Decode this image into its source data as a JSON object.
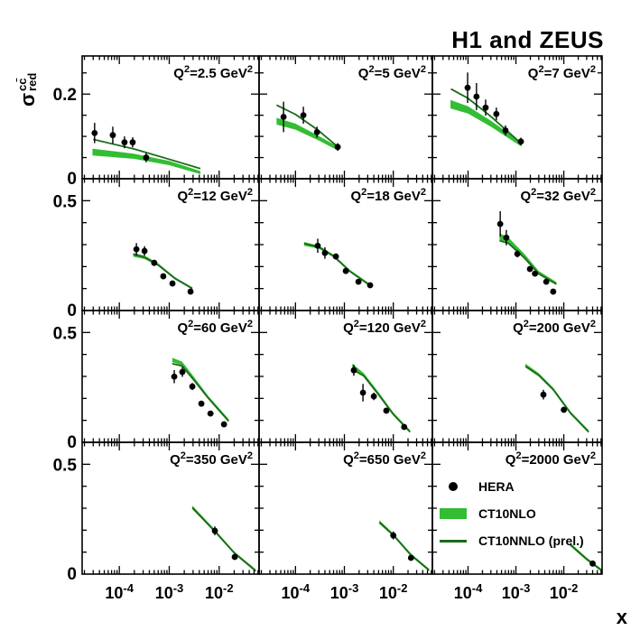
{
  "chart_data": {
    "type": "scatter",
    "title": "H1 and ZEUS",
    "xlabel": "x",
    "ylabel": {
      "base": "σ",
      "sup": "cc̄",
      "sub": "red"
    },
    "x_scale": "log",
    "x_range": [
      1.8e-05,
      0.063
    ],
    "x_major_ticks": [
      {
        "v": 0.0001,
        "base": "10",
        "exp": "-4",
        "label": "10⁻⁴"
      },
      {
        "v": 0.001,
        "base": "10",
        "exp": "-3",
        "label": "10⁻³"
      },
      {
        "v": 0.01,
        "base": "10",
        "exp": "-2",
        "label": "10⁻²"
      }
    ],
    "grid": {
      "nrows": 4,
      "ncols": 3
    },
    "rows": [
      {
        "ymax": 0.29,
        "minor_step": 0.05,
        "tick_labels": [
          {
            "v": 0.2,
            "t": "0.2"
          },
          {
            "v": 0,
            "t": "0"
          }
        ]
      },
      {
        "ymax": 0.6,
        "minor_step": 0.1,
        "tick_labels": [
          {
            "v": 0.5,
            "t": "0.5"
          },
          {
            "v": 0,
            "t": "0"
          }
        ]
      },
      {
        "ymax": 0.6,
        "minor_step": 0.1,
        "tick_labels": [
          {
            "v": 0.5,
            "t": "0.5"
          },
          {
            "v": 0,
            "t": "0"
          }
        ]
      },
      {
        "ymax": 0.6,
        "minor_step": 0.1,
        "tick_labels": [
          {
            "v": 0.5,
            "t": "0.5"
          },
          {
            "v": 0,
            "t": "0"
          }
        ]
      }
    ],
    "legend": [
      {
        "type": "marker",
        "label": "HERA"
      },
      {
        "type": "band",
        "label": "CT10NLO"
      },
      {
        "type": "line",
        "label": "CT10NNLO (prel.)"
      }
    ],
    "colors": {
      "data": "#000000",
      "band": "#33bd33",
      "line": "#1a6b1a"
    },
    "panels": [
      {
        "q2": "2.5",
        "label": "Q²=2.5 GeV²",
        "points": {
          "x": [
            3.2e-05,
            7.4e-05,
            0.000127,
            0.000185,
            0.000345
          ],
          "y": [
            0.108,
            0.103,
            0.086,
            0.086,
            0.05
          ],
          "ey": [
            0.024,
            0.02,
            0.014,
            0.012,
            0.011
          ]
        },
        "band": [
          [
            2.9e-05,
            0.055,
            0.071
          ],
          [
            0.0002,
            0.047,
            0.059
          ],
          [
            0.001,
            0.032,
            0.042
          ],
          [
            0.0042,
            0.011,
            0.018
          ]
        ],
        "line": [
          [
            3e-05,
            0.093
          ],
          [
            0.0002,
            0.07
          ],
          [
            0.001,
            0.046
          ],
          [
            0.0042,
            0.024
          ]
        ]
      },
      {
        "q2": "5",
        "label": "Q²=5 GeV²",
        "points": {
          "x": [
            5.7e-05,
            0.000145,
            0.000275,
            0.00073
          ],
          "y": [
            0.146,
            0.15,
            0.11,
            0.075
          ],
          "ey": [
            0.036,
            0.02,
            0.013,
            0.009
          ]
        },
        "band": [
          [
            4.1e-05,
            0.128,
            0.144
          ],
          [
            0.0001,
            0.116,
            0.13
          ],
          [
            0.00028,
            0.092,
            0.103
          ],
          [
            0.00076,
            0.066,
            0.075
          ]
        ],
        "line": [
          [
            4.1e-05,
            0.174
          ],
          [
            0.0001,
            0.152
          ],
          [
            0.00028,
            0.116
          ],
          [
            0.00076,
            0.074
          ]
        ]
      },
      {
        "q2": "7",
        "label": "Q²=7 GeV²",
        "points": {
          "x": [
            9.8e-05,
            0.00015,
            0.000233,
            0.00039,
            0.000605,
            0.00127
          ],
          "y": [
            0.215,
            0.194,
            0.168,
            0.153,
            0.114,
            0.088
          ],
          "ey": [
            0.036,
            0.032,
            0.019,
            0.015,
            0.012,
            0.009
          ]
        },
        "band": [
          [
            4.3e-05,
            0.166,
            0.186
          ],
          [
            0.0001,
            0.154,
            0.171
          ],
          [
            0.0003,
            0.123,
            0.137
          ],
          [
            0.0013,
            0.076,
            0.086
          ]
        ],
        "line": [
          [
            4.4e-05,
            0.212
          ],
          [
            0.0001,
            0.19
          ],
          [
            0.0003,
            0.147
          ],
          [
            0.0013,
            0.083
          ]
        ]
      },
      {
        "q2": "12",
        "label": "Q²=12 GeV²",
        "points": {
          "x": [
            0.00022,
            0.00032,
            0.0005,
            0.00076,
            0.00116,
            0.00267
          ],
          "y": [
            0.279,
            0.271,
            0.217,
            0.156,
            0.123,
            0.086
          ],
          "ey": [
            0.028,
            0.022,
            0.014,
            0.01,
            0.009,
            0.007
          ]
        },
        "band": [
          [
            0.00019,
            0.245,
            0.262
          ],
          [
            0.00032,
            0.235,
            0.25
          ],
          [
            0.0006,
            0.203,
            0.215
          ],
          [
            0.0013,
            0.143,
            0.152
          ],
          [
            0.0029,
            0.096,
            0.106
          ]
        ],
        "line": [
          [
            0.00019,
            0.256
          ],
          [
            0.00032,
            0.242
          ],
          [
            0.0006,
            0.207
          ],
          [
            0.0013,
            0.146
          ],
          [
            0.0029,
            0.1
          ]
        ]
      },
      {
        "q2": "18",
        "label": "Q²=18 GeV²",
        "points": {
          "x": [
            0.000285,
            0.0004,
            0.00067,
            0.00107,
            0.00194,
            0.00336
          ],
          "y": [
            0.295,
            0.262,
            0.246,
            0.18,
            0.131,
            0.115
          ],
          "ey": [
            0.032,
            0.026,
            0.014,
            0.011,
            0.009,
            0.008
          ]
        },
        "band": [
          [
            0.00015,
            0.295,
            0.312
          ],
          [
            0.0003,
            0.282,
            0.296
          ],
          [
            0.0006,
            0.243,
            0.255
          ],
          [
            0.0013,
            0.175,
            0.185
          ],
          [
            0.0035,
            0.108,
            0.118
          ]
        ],
        "line": [
          [
            0.00015,
            0.305
          ],
          [
            0.0003,
            0.288
          ],
          [
            0.0006,
            0.247
          ],
          [
            0.0013,
            0.178
          ],
          [
            0.0035,
            0.111
          ]
        ]
      },
      {
        "q2": "32",
        "label": "Q²=32 GeV²",
        "points": {
          "x": [
            0.00047,
            0.00063,
            0.00107,
            0.00196,
            0.0025,
            0.0043,
            0.006
          ],
          "y": [
            0.394,
            0.332,
            0.258,
            0.189,
            0.168,
            0.131,
            0.086
          ],
          "ey": [
            0.058,
            0.035,
            0.016,
            0.013,
            0.013,
            0.01,
            0.009
          ]
        },
        "band": [
          [
            0.000455,
            0.322,
            0.352
          ],
          [
            0.0007,
            0.31,
            0.332
          ],
          [
            0.0015,
            0.242,
            0.258
          ],
          [
            0.003,
            0.168,
            0.18
          ],
          [
            0.007,
            0.118,
            0.13
          ]
        ],
        "line": [
          [
            0.000455,
            0.318
          ],
          [
            0.0007,
            0.306
          ],
          [
            0.0015,
            0.24
          ],
          [
            0.003,
            0.167
          ],
          [
            0.007,
            0.12
          ]
        ]
      },
      {
        "q2": "60",
        "label": "Q²=60 GeV²",
        "points": {
          "x": [
            0.00126,
            0.00183,
            0.0029,
            0.0044,
            0.0067,
            0.0125
          ],
          "y": [
            0.299,
            0.32,
            0.254,
            0.176,
            0.131,
            0.082
          ],
          "ey": [
            0.03,
            0.022,
            0.016,
            0.012,
            0.01,
            0.008
          ]
        },
        "band": [
          [
            0.00115,
            0.365,
            0.385
          ],
          [
            0.0018,
            0.352,
            0.368
          ],
          [
            0.003,
            0.29,
            0.303
          ],
          [
            0.006,
            0.2,
            0.212
          ],
          [
            0.0155,
            0.094,
            0.106
          ]
        ],
        "line": [
          [
            0.00115,
            0.358
          ],
          [
            0.0018,
            0.348
          ],
          [
            0.003,
            0.288
          ],
          [
            0.006,
            0.202
          ],
          [
            0.0155,
            0.096
          ]
        ]
      },
      {
        "q2": "120",
        "label": "Q²=120 GeV²",
        "points": {
          "x": [
            0.00156,
            0.0024,
            0.004,
            0.0072,
            0.0167
          ],
          "y": [
            0.328,
            0.226,
            0.209,
            0.144,
            0.07
          ],
          "ey": [
            0.025,
            0.04,
            0.017,
            0.012,
            0.009
          ]
        },
        "band": [
          [
            0.00145,
            0.34,
            0.358
          ],
          [
            0.0025,
            0.3,
            0.315
          ],
          [
            0.005,
            0.215,
            0.228
          ],
          [
            0.01,
            0.125,
            0.136
          ],
          [
            0.022,
            0.044,
            0.056
          ]
        ],
        "line": [
          [
            0.00145,
            0.332
          ],
          [
            0.0025,
            0.302
          ],
          [
            0.005,
            0.217
          ],
          [
            0.01,
            0.127
          ],
          [
            0.022,
            0.047
          ]
        ]
      },
      {
        "q2": "200",
        "label": "Q²=200 GeV²",
        "points": {
          "x": [
            0.00375,
            0.01
          ],
          "y": [
            0.217,
            0.148
          ],
          "ey": [
            0.022,
            0.013
          ]
        },
        "band": [
          [
            0.00158,
            0.34,
            0.358
          ],
          [
            0.003,
            0.3,
            0.315
          ],
          [
            0.006,
            0.236,
            0.249
          ],
          [
            0.014,
            0.128,
            0.139
          ],
          [
            0.033,
            0.044,
            0.056
          ]
        ],
        "line": [
          [
            0.00158,
            0.347
          ],
          [
            0.003,
            0.305
          ],
          [
            0.006,
            0.24
          ],
          [
            0.014,
            0.131
          ],
          [
            0.033,
            0.047
          ]
        ]
      },
      {
        "q2": "350",
        "label": "Q²=350 GeV²",
        "points": {
          "x": [
            0.0082,
            0.0205
          ],
          "y": [
            0.197,
            0.078
          ],
          "ey": [
            0.02,
            0.011
          ]
        },
        "band": [
          [
            0.0029,
            0.295,
            0.312
          ],
          [
            0.0082,
            0.19,
            0.203
          ],
          [
            0.0205,
            0.09,
            0.101
          ],
          [
            0.054,
            0.01,
            0.022
          ]
        ],
        "line": [
          [
            0.0029,
            0.303
          ],
          [
            0.0082,
            0.194
          ],
          [
            0.0205,
            0.094
          ],
          [
            0.054,
            0.014
          ]
        ]
      },
      {
        "q2": "650",
        "label": "Q²=650 GeV²",
        "points": {
          "x": [
            0.01,
            0.023
          ],
          "y": [
            0.176,
            0.074
          ],
          "ey": [
            0.018,
            0.011
          ]
        },
        "band": [
          [
            0.0052,
            0.228,
            0.245
          ],
          [
            0.01,
            0.172,
            0.185
          ],
          [
            0.023,
            0.082,
            0.094
          ],
          [
            0.054,
            0.012,
            0.024
          ]
        ],
        "line": [
          [
            0.0052,
            0.236
          ],
          [
            0.01,
            0.178
          ],
          [
            0.023,
            0.086
          ],
          [
            0.054,
            0.018
          ]
        ]
      },
      {
        "q2": "2000",
        "label": "Q²=2000 GeV²",
        "points": {
          "x": [
            0.04
          ],
          "y": [
            0.048
          ],
          "ey": [
            0.012
          ]
        },
        "band": [
          [
            0.0135,
            0.128,
            0.143
          ],
          [
            0.03,
            0.062,
            0.075
          ],
          [
            0.063,
            0.01,
            0.022
          ]
        ],
        "line": [
          [
            0.0135,
            0.135
          ],
          [
            0.03,
            0.068
          ],
          [
            0.063,
            0.015
          ]
        ]
      }
    ]
  }
}
